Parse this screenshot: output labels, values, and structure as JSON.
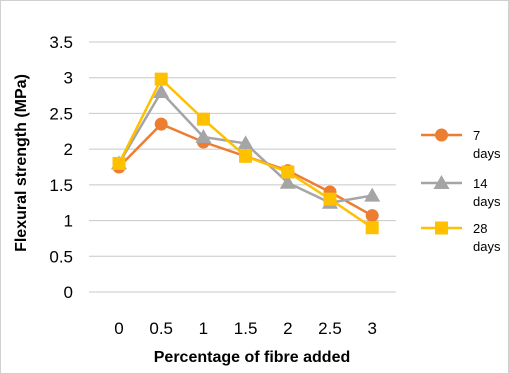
{
  "chart_data": {
    "type": "line",
    "title": "",
    "xlabel": "Percentage of fibre added",
    "ylabel": "Flexural strength (MPa)",
    "x": [
      "0",
      "0.5",
      "1",
      "1.5",
      "2",
      "2.5",
      "3"
    ],
    "ylim": [
      0,
      3.5
    ],
    "yticks": [
      "0",
      "0.5",
      "1",
      "1.5",
      "2",
      "2.5",
      "3",
      "3.5"
    ],
    "grid": true,
    "legend_position": "right",
    "series": [
      {
        "name": "7 days",
        "name_lines": [
          "7",
          "days"
        ],
        "color": "#ED7D31",
        "marker": "circle",
        "values": [
          1.75,
          2.35,
          2.1,
          1.9,
          1.7,
          1.4,
          1.07
        ]
      },
      {
        "name": "14 days",
        "name_lines": [
          "14",
          "days"
        ],
        "color": "#A5A5A5",
        "marker": "triangle",
        "values": [
          1.8,
          2.8,
          2.17,
          2.08,
          1.53,
          1.25,
          1.35
        ]
      },
      {
        "name": "28 days",
        "name_lines": [
          "28",
          "days"
        ],
        "color": "#FFC000",
        "marker": "square",
        "values": [
          1.8,
          2.98,
          2.42,
          1.9,
          1.68,
          1.3,
          0.9
        ]
      }
    ]
  }
}
